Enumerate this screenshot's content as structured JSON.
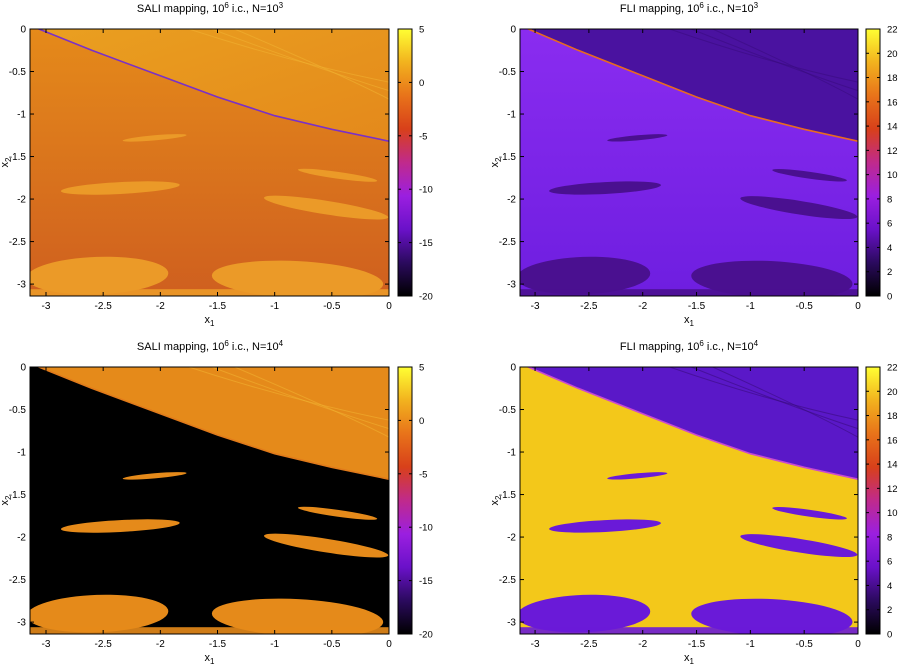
{
  "chart_data": [
    {
      "type": "heatmap",
      "method": "SALI",
      "title": {
        "prefix": "SALI mapping, 10",
        "sup1": "6",
        "mid": " i.c., N=10",
        "sup2": "3"
      },
      "xlabel": {
        "base": "x",
        "sub": "1"
      },
      "ylabel": {
        "base": "x",
        "sub": "2"
      },
      "xlim": [
        -3.14,
        0
      ],
      "ylim": [
        -3.14,
        0
      ],
      "xticks": [
        -3,
        -2.5,
        -2,
        -1.5,
        -1,
        -0.5,
        0
      ],
      "yticks": [
        0,
        -0.5,
        -1,
        -1.5,
        -2,
        -2.5,
        -3
      ],
      "colorbar": {
        "min": -20,
        "max": 5,
        "ticks": [
          5,
          0,
          -5,
          -10,
          -15,
          -20
        ]
      }
    },
    {
      "type": "heatmap",
      "method": "FLI",
      "title": {
        "prefix": "FLI mapping, 10",
        "sup1": "6",
        "mid": " i.c., N=10",
        "sup2": "3"
      },
      "xlabel": {
        "base": "x",
        "sub": "1"
      },
      "ylabel": {
        "base": "x",
        "sub": "2"
      },
      "xlim": [
        -3.14,
        0
      ],
      "ylim": [
        -3.14,
        0
      ],
      "xticks": [
        -3,
        -2.5,
        -2,
        -1.5,
        -1,
        -0.5,
        0
      ],
      "yticks": [
        0,
        -0.5,
        -1,
        -1.5,
        -2,
        -2.5,
        -3
      ],
      "colorbar": {
        "min": 0,
        "max": 22,
        "ticks": [
          22,
          20,
          18,
          16,
          14,
          12,
          10,
          8,
          6,
          4,
          2,
          0
        ]
      }
    },
    {
      "type": "heatmap",
      "method": "SALI",
      "title": {
        "prefix": "SALI mapping, 10",
        "sup1": "6",
        "mid": " i.c., N=10",
        "sup2": "4"
      },
      "xlabel": {
        "base": "x",
        "sub": "1"
      },
      "ylabel": {
        "base": "x",
        "sub": "2"
      },
      "xlim": [
        -3.14,
        0
      ],
      "ylim": [
        -3.14,
        0
      ],
      "xticks": [
        -3,
        -2.5,
        -2,
        -1.5,
        -1,
        -0.5,
        0
      ],
      "yticks": [
        0,
        -0.5,
        -1,
        -1.5,
        -2,
        -2.5,
        -3
      ],
      "colorbar": {
        "min": -20,
        "max": 5,
        "ticks": [
          5,
          0,
          -5,
          -10,
          -15,
          -20
        ]
      }
    },
    {
      "type": "heatmap",
      "method": "FLI",
      "title": {
        "prefix": "FLI mapping, 10",
        "sup1": "6",
        "mid": " i.c., N=10",
        "sup2": "4"
      },
      "xlabel": {
        "base": "x",
        "sub": "1"
      },
      "ylabel": {
        "base": "x",
        "sub": "2"
      },
      "xlim": [
        -3.14,
        0
      ],
      "ylim": [
        -3.14,
        0
      ],
      "xticks": [
        -3,
        -2.5,
        -2,
        -1.5,
        -1,
        -0.5,
        0
      ],
      "yticks": [
        0,
        -0.5,
        -1,
        -1.5,
        -2,
        -2.5,
        -3
      ],
      "colorbar": {
        "min": 0,
        "max": 22,
        "ticks": [
          22,
          20,
          18,
          16,
          14,
          12,
          10,
          8,
          6,
          4,
          2,
          0
        ]
      }
    }
  ],
  "colormap": [
    "#000000",
    "#2b0a5e",
    "#6a11c9",
    "#9b1fe0",
    "#c02a8c",
    "#d8401a",
    "#e8731a",
    "#f2b21e",
    "#ffff33"
  ],
  "colors": {
    "sali_chaotic_N3": "#d4661c",
    "sali_regular_N3": "#e98e1a",
    "sali_chaotic_N4": "#000000",
    "sali_regular_N4": "#e58a1a",
    "fli_chaotic_N3": "#7a24e8",
    "fli_regular": "#4a12a0",
    "fli_chaotic_N4": "#f3c81a",
    "fli_regular_N4": "#6a1ad8"
  }
}
